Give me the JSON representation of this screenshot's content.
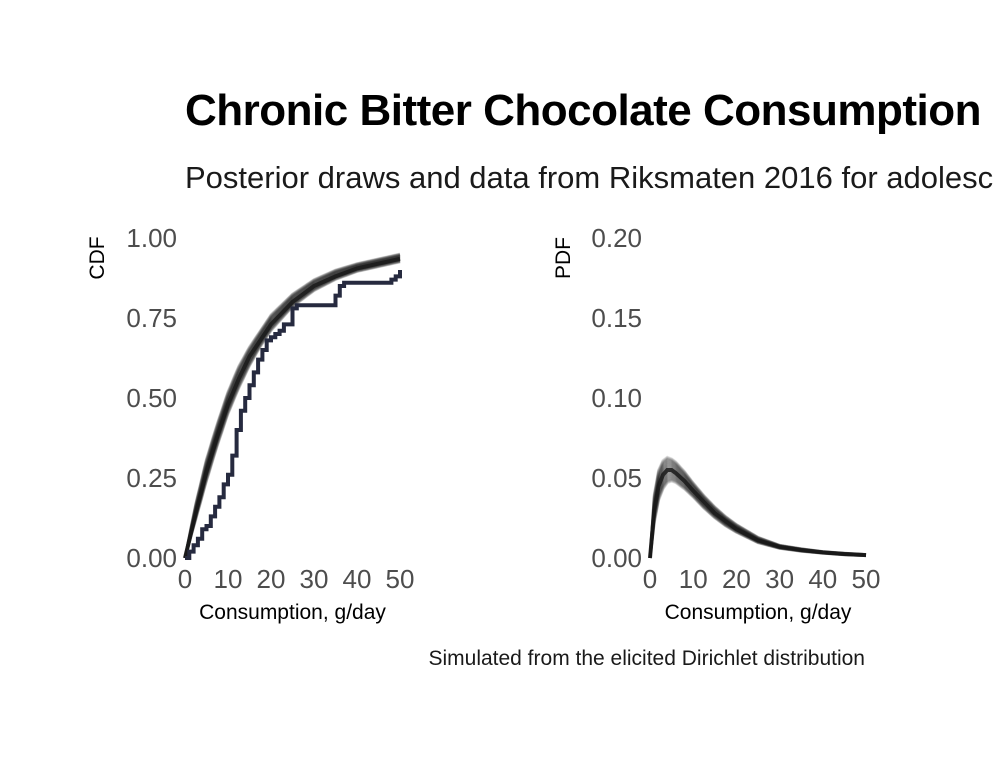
{
  "title": "Chronic Bitter Chocolate Consumption",
  "subtitle": "Posterior draws and data from Riksmaten 2016 for adolesc",
  "caption": "Simulated from the elicited Dirichlet distribution",
  "colors": {
    "draws": "#1a1a1a",
    "data": "#262a3f"
  },
  "chart_data": [
    {
      "type": "line",
      "panel": "left",
      "xlabel": "Consumption, g/day",
      "ylabel": "CDF",
      "xlim": [
        0,
        50
      ],
      "ylim": [
        0,
        1
      ],
      "x_ticks": [
        0,
        10,
        20,
        30,
        40,
        50
      ],
      "y_ticks": [
        "0.00",
        "0.25",
        "0.50",
        "0.75",
        "1.00"
      ],
      "grid": false,
      "series": [
        {
          "role": "posterior-draws-median",
          "x": [
            0,
            2.5,
            5,
            7.5,
            10,
            12.5,
            15,
            17.5,
            20,
            25,
            30,
            35,
            40,
            45,
            50
          ],
          "y": [
            0,
            0.14,
            0.27,
            0.38,
            0.48,
            0.56,
            0.63,
            0.68,
            0.73,
            0.8,
            0.85,
            0.88,
            0.905,
            0.92,
            0.935
          ]
        },
        {
          "role": "posterior-draws-lower",
          "x": [
            0,
            2.5,
            5,
            7.5,
            10,
            12.5,
            15,
            17.5,
            20,
            25,
            30,
            35,
            40,
            45,
            50
          ],
          "y": [
            0,
            0.12,
            0.24,
            0.35,
            0.45,
            0.53,
            0.6,
            0.66,
            0.71,
            0.785,
            0.835,
            0.87,
            0.895,
            0.91,
            0.925
          ]
        },
        {
          "role": "posterior-draws-upper",
          "x": [
            0,
            2.5,
            5,
            7.5,
            10,
            12.5,
            15,
            17.5,
            20,
            25,
            30,
            35,
            40,
            45,
            50
          ],
          "y": [
            0,
            0.17,
            0.31,
            0.42,
            0.52,
            0.6,
            0.66,
            0.71,
            0.76,
            0.825,
            0.87,
            0.9,
            0.92,
            0.935,
            0.95
          ]
        },
        {
          "role": "observed-data",
          "x": [
            0,
            1,
            2,
            3,
            4,
            5,
            6,
            7,
            8,
            9,
            10,
            11,
            12,
            13,
            14,
            15,
            16,
            17,
            18,
            19,
            20,
            21,
            22,
            23,
            25,
            26,
            27,
            30,
            32,
            35,
            36,
            37,
            38,
            40,
            45,
            48,
            49,
            50
          ],
          "y": [
            0,
            0.02,
            0.04,
            0.06,
            0.09,
            0.1,
            0.13,
            0.16,
            0.19,
            0.23,
            0.26,
            0.32,
            0.4,
            0.46,
            0.5,
            0.54,
            0.58,
            0.62,
            0.65,
            0.68,
            0.69,
            0.7,
            0.71,
            0.73,
            0.78,
            0.79,
            0.79,
            0.79,
            0.79,
            0.82,
            0.85,
            0.86,
            0.86,
            0.86,
            0.86,
            0.87,
            0.88,
            0.9
          ]
        }
      ]
    },
    {
      "type": "line",
      "panel": "right",
      "xlabel": "Consumption, g/day",
      "ylabel": "PDF",
      "xlim": [
        0,
        50
      ],
      "ylim": [
        0,
        0.2
      ],
      "x_ticks": [
        0,
        10,
        20,
        30,
        40,
        50
      ],
      "y_ticks": [
        "0.00",
        "0.05",
        "0.10",
        "0.15",
        "0.20"
      ],
      "grid": false,
      "series": [
        {
          "role": "posterior-draws-median",
          "x": [
            0,
            1,
            2,
            3,
            4,
            5,
            6,
            8,
            10,
            12.5,
            15,
            17.5,
            20,
            25,
            30,
            35,
            40,
            45,
            50
          ],
          "y": [
            0,
            0.03,
            0.045,
            0.052,
            0.055,
            0.055,
            0.053,
            0.048,
            0.042,
            0.035,
            0.028,
            0.023,
            0.018,
            0.011,
            0.007,
            0.005,
            0.0035,
            0.0025,
            0.0018
          ]
        },
        {
          "role": "posterior-draws-lower",
          "x": [
            0,
            1,
            2,
            3,
            4,
            5,
            6,
            8,
            10,
            12.5,
            15,
            17.5,
            20,
            25,
            30,
            35,
            40,
            45,
            50
          ],
          "y": [
            0,
            0.022,
            0.036,
            0.043,
            0.047,
            0.048,
            0.047,
            0.043,
            0.038,
            0.031,
            0.025,
            0.02,
            0.016,
            0.0095,
            0.006,
            0.0042,
            0.003,
            0.002,
            0.0015
          ]
        },
        {
          "role": "posterior-draws-upper",
          "x": [
            0,
            1,
            2,
            3,
            4,
            5,
            6,
            8,
            10,
            12.5,
            15,
            17.5,
            20,
            25,
            30,
            35,
            40,
            45,
            50
          ],
          "y": [
            0,
            0.04,
            0.055,
            0.061,
            0.063,
            0.062,
            0.06,
            0.054,
            0.047,
            0.039,
            0.032,
            0.026,
            0.021,
            0.013,
            0.008,
            0.0058,
            0.004,
            0.003,
            0.0022
          ]
        }
      ]
    }
  ]
}
